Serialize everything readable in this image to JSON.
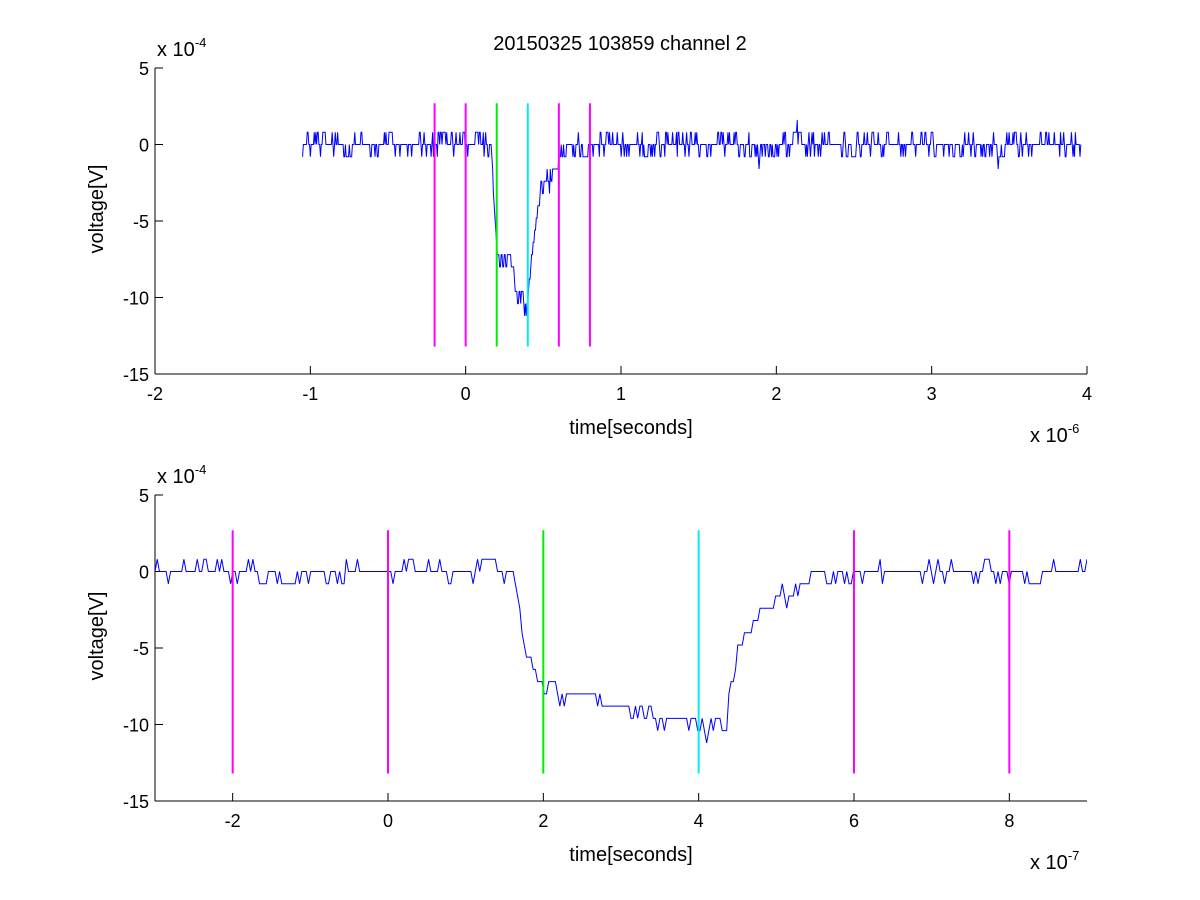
{
  "title": "20150325 103859 channel 2",
  "chart_data": [
    {
      "type": "line",
      "xlabel": "time[seconds]",
      "ylabel": "voltage[V]",
      "x_multiplier": {
        "base": "x 10",
        "exp": "-6"
      },
      "y_multiplier": {
        "base": "x 10",
        "exp": "-4"
      },
      "xlim": [
        -2,
        4
      ],
      "ylim": [
        -15,
        5
      ],
      "x_ticks": [
        "-2",
        "-1",
        "0",
        "1",
        "2",
        "3",
        "4"
      ],
      "y_ticks": [
        "5",
        "0",
        "-5",
        "-10",
        "-15"
      ],
      "series": [
        {
          "color": "#0000ff",
          "x_range": [
            -1.05,
            3.96
          ],
          "noise_amplitude": 1.6,
          "profile": [
            [
              -1.05,
              0
            ],
            [
              0.17,
              0
            ],
            [
              0.19,
              -5.5
            ],
            [
              0.2,
              -7
            ],
            [
              0.3,
              -8.5
            ],
            [
              0.4,
              -10.5
            ],
            [
              0.45,
              -5
            ],
            [
              0.5,
              -2.5
            ],
            [
              0.58,
              -1
            ],
            [
              0.65,
              0
            ],
            [
              3.96,
              0
            ]
          ]
        }
      ],
      "vlines": [
        {
          "x": -0.2,
          "ymin": -13.2,
          "ymax": 2.7,
          "color": "#ff00ff"
        },
        {
          "x": 0.0,
          "ymin": -13.2,
          "ymax": 2.7,
          "color": "#ff00ff"
        },
        {
          "x": 0.2,
          "ymin": -13.2,
          "ymax": 2.7,
          "color": "#00ee00"
        },
        {
          "x": 0.4,
          "ymin": -13.2,
          "ymax": 2.7,
          "color": "#00eeee"
        },
        {
          "x": 0.6,
          "ymin": -13.2,
          "ymax": 2.7,
          "color": "#ff00ff"
        },
        {
          "x": 0.8,
          "ymin": -13.2,
          "ymax": 2.7,
          "color": "#ff00ff"
        }
      ]
    },
    {
      "type": "line",
      "xlabel": "time[seconds]",
      "ylabel": "voltage[V]",
      "x_multiplier": {
        "base": "x 10",
        "exp": "-7"
      },
      "y_multiplier": {
        "base": "x 10",
        "exp": "-4"
      },
      "xlim": [
        -3,
        9
      ],
      "ylim": [
        -15,
        5
      ],
      "x_ticks": [
        "-2",
        "0",
        "2",
        "4",
        "6",
        "8"
      ],
      "y_ticks": [
        "5",
        "0",
        "-5",
        "-10",
        "-15"
      ],
      "series": [
        {
          "color": "#0000ff",
          "x_range": [
            -3,
            9
          ],
          "noise_amplitude": 1.3,
          "profile": [
            [
              -3,
              0
            ],
            [
              1.6,
              0
            ],
            [
              1.7,
              -3
            ],
            [
              1.8,
              -5.5
            ],
            [
              2.0,
              -7.5
            ],
            [
              2.5,
              -8.5
            ],
            [
              3.0,
              -9
            ],
            [
              3.5,
              -9.5
            ],
            [
              4.0,
              -10.2
            ],
            [
              4.35,
              -10.3
            ],
            [
              4.5,
              -5
            ],
            [
              4.7,
              -3.5
            ],
            [
              5.0,
              -2
            ],
            [
              5.5,
              -0.5
            ],
            [
              6.0,
              0
            ],
            [
              9,
              0
            ]
          ]
        }
      ],
      "vlines": [
        {
          "x": -2,
          "ymin": -13.2,
          "ymax": 2.7,
          "color": "#ff00ff"
        },
        {
          "x": 0,
          "ymin": -13.2,
          "ymax": 2.7,
          "color": "#ff00ff"
        },
        {
          "x": 2,
          "ymin": -13.2,
          "ymax": 2.7,
          "color": "#00ee00"
        },
        {
          "x": 4,
          "ymin": -13.2,
          "ymax": 2.7,
          "color": "#00eeee"
        },
        {
          "x": 6,
          "ymin": -13.2,
          "ymax": 2.7,
          "color": "#ff00ff"
        },
        {
          "x": 8,
          "ymin": -13.2,
          "ymax": 2.7,
          "color": "#ff00ff"
        }
      ]
    }
  ]
}
